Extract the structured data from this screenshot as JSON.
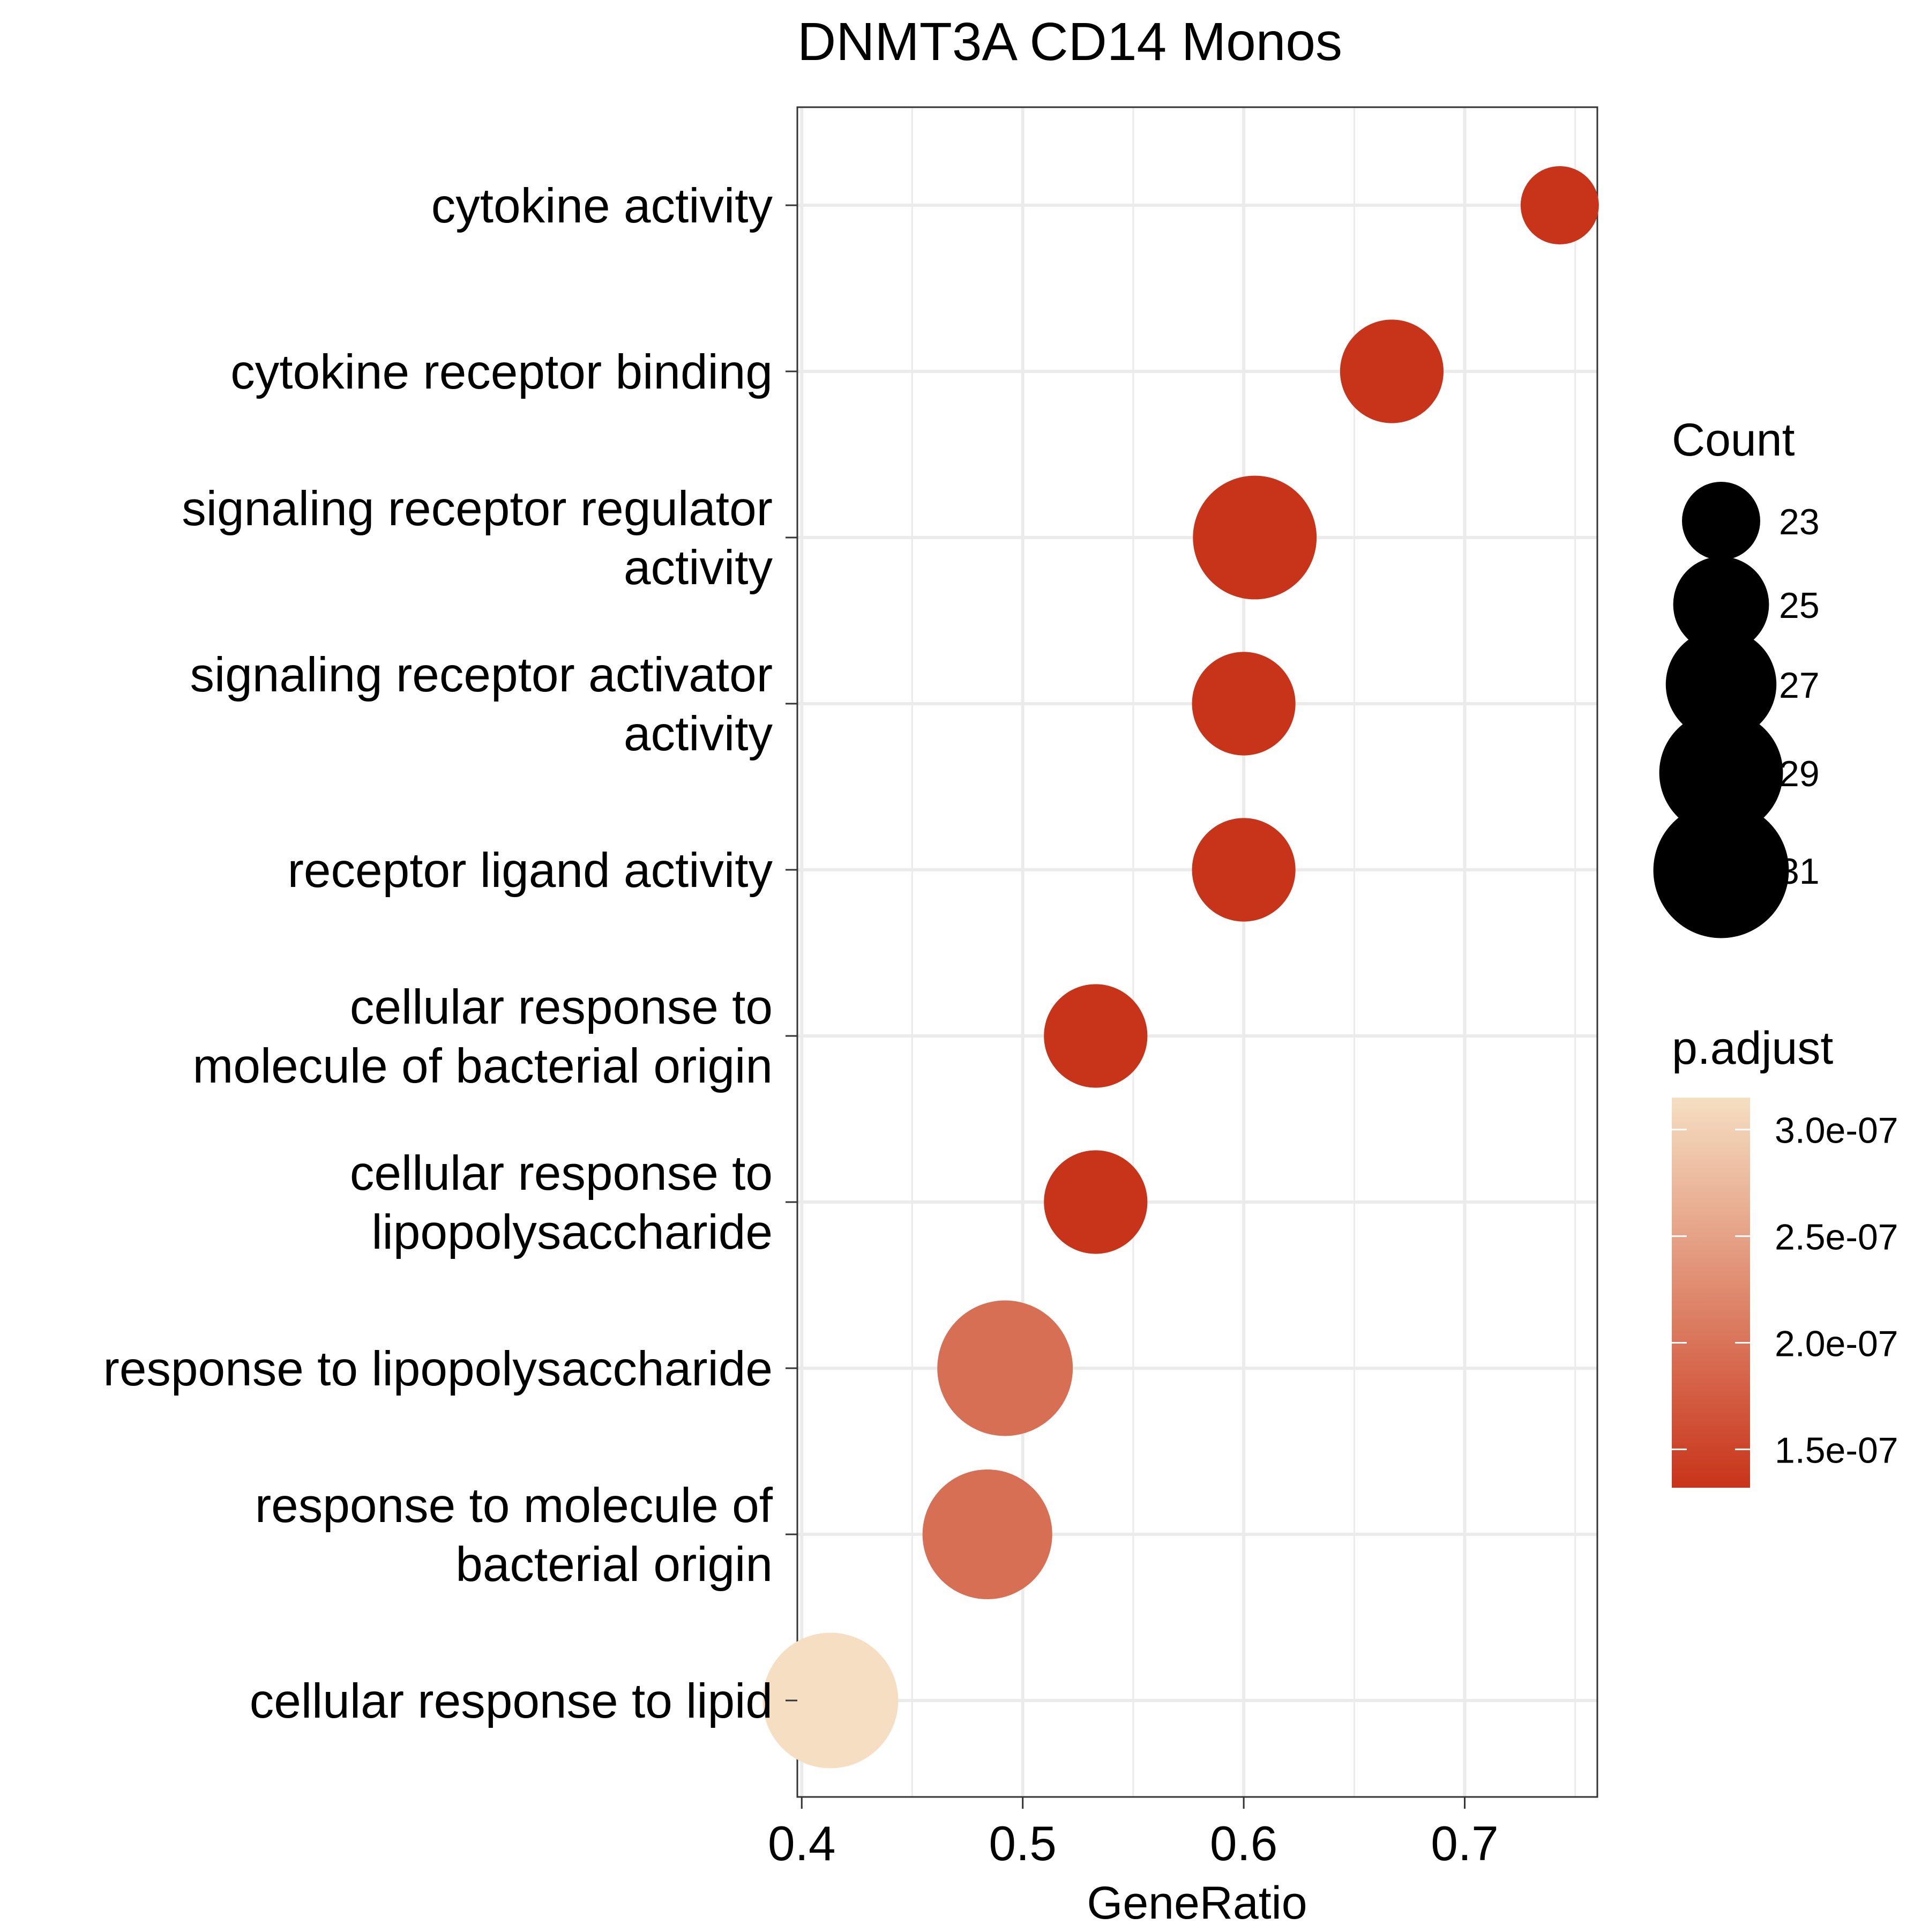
{
  "chart_data": {
    "type": "scatter",
    "title": "DNMT3A CD14 Monos",
    "xlabel": "GeneRatio",
    "ylabel": "",
    "xlim": [
      0.398,
      0.76
    ],
    "xticks": [
      "0.4",
      "0.5",
      "0.6",
      "0.7"
    ],
    "xtick_values": [
      0.4,
      0.5,
      0.6,
      0.7
    ],
    "grid": true,
    "legend_position": "right",
    "categories": [
      "cytokine activity",
      "cytokine receptor binding",
      "signaling receptor regulator activity",
      "signaling receptor activator activity",
      "receptor ligand activity",
      "cellular response to molecule of bacterial origin",
      "cellular response to lipopolysaccharide",
      "response to lipopolysaccharide",
      "response to molecule of bacterial origin",
      "cellular response to lipid"
    ],
    "category_labels": [
      [
        "cytokine activity"
      ],
      [
        "cytokine receptor binding"
      ],
      [
        "signaling receptor regulator",
        "activity"
      ],
      [
        "signaling receptor activator",
        "activity"
      ],
      [
        "receptor ligand activity"
      ],
      [
        "cellular response to",
        "molecule of bacterial origin"
      ],
      [
        "cellular response to",
        "lipopolysaccharide"
      ],
      [
        "response to lipopolysaccharide"
      ],
      [
        "response to molecule of",
        "bacterial origin"
      ],
      [
        "cellular response to lipid"
      ]
    ],
    "points": [
      {
        "category": "cytokine activity",
        "x": 0.743,
        "count": 23,
        "p_adjust": 1.32e-07
      },
      {
        "category": "cytokine receptor binding",
        "x": 0.667,
        "count": 26,
        "p_adjust": 1.32e-07
      },
      {
        "category": "signaling receptor regulator activity",
        "x": 0.605,
        "count": 29,
        "p_adjust": 1.32e-07
      },
      {
        "category": "signaling receptor activator activity",
        "x": 0.6,
        "count": 26,
        "p_adjust": 1.32e-07
      },
      {
        "category": "receptor ligand activity",
        "x": 0.6,
        "count": 26,
        "p_adjust": 1.32e-07
      },
      {
        "category": "cellular response to molecule of bacterial origin",
        "x": 0.533,
        "count": 26,
        "p_adjust": 1.32e-07
      },
      {
        "category": "cellular response to lipopolysaccharide",
        "x": 0.533,
        "count": 26,
        "p_adjust": 1.32e-07
      },
      {
        "category": "response to lipopolysaccharide",
        "x": 0.492,
        "count": 31,
        "p_adjust": 1.95e-07
      },
      {
        "category": "response to molecule of bacterial origin",
        "x": 0.484,
        "count": 30,
        "p_adjust": 1.95e-07
      },
      {
        "category": "cellular response to lipid",
        "x": 0.413,
        "count": 31,
        "p_adjust": 3.15e-07
      }
    ],
    "size_legend": {
      "title": "Count",
      "values": [
        23,
        25,
        27,
        29,
        31
      ],
      "labels": [
        "23",
        "25",
        "27",
        "29",
        "31"
      ]
    },
    "color_legend": {
      "title": "p.adjust",
      "range": [
        1.32e-07,
        3.15e-07
      ],
      "ticks": [
        3e-07,
        2.5e-07,
        2e-07,
        1.5e-07
      ],
      "labels": [
        "3.0e-07",
        "2.5e-07",
        "2.0e-07",
        "1.5e-07"
      ],
      "low_color": "#C8341A",
      "high_color": "#F5DEC2"
    }
  }
}
